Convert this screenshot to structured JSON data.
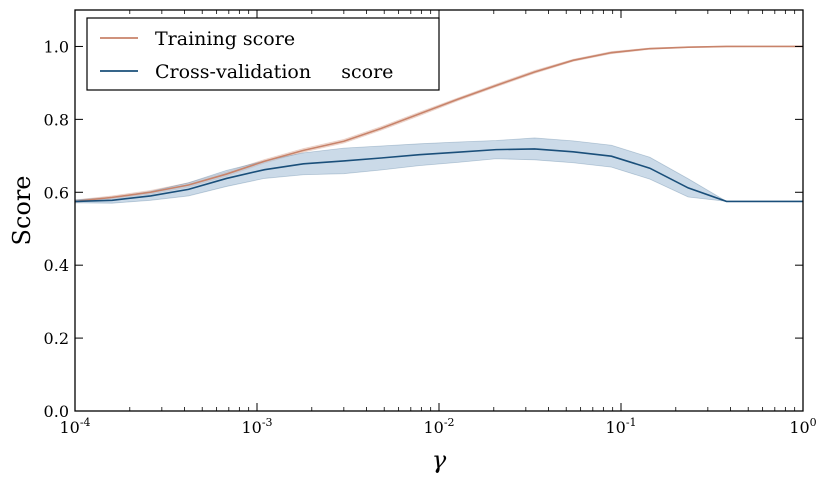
{
  "chart_data": {
    "type": "line",
    "title": "",
    "xlabel": "γ",
    "ylabel": "Score",
    "xscale": "log",
    "xlim": [
      0.0001,
      1
    ],
    "ylim": [
      0.0,
      1.1
    ],
    "x_ticks": [
      {
        "value": 0.0001,
        "base": "10",
        "exp": "-4"
      },
      {
        "value": 0.001,
        "base": "10",
        "exp": "-3"
      },
      {
        "value": 0.01,
        "base": "10",
        "exp": "-2"
      },
      {
        "value": 0.1,
        "base": "10",
        "exp": "-1"
      },
      {
        "value": 1,
        "base": "10",
        "exp": "0"
      }
    ],
    "y_ticks": [
      {
        "value": 0.0,
        "label": "0.0"
      },
      {
        "value": 0.2,
        "label": "0.2"
      },
      {
        "value": 0.4,
        "label": "0.4"
      },
      {
        "value": 0.6,
        "label": "0.6"
      },
      {
        "value": 0.8,
        "label": "0.8"
      },
      {
        "value": 1.0,
        "label": "1.0"
      }
    ],
    "legend_position": "top-left",
    "series": [
      {
        "name": "Training score",
        "color": "#c8836a",
        "band_color": "#e8c4b8",
        "x": [
          0.0001,
          0.00016,
          0.00026,
          0.00042,
          0.00068,
          0.0011,
          0.0018,
          0.003,
          0.0048,
          0.0078,
          0.0127,
          0.0206,
          0.0335,
          0.0546,
          0.0886,
          0.144,
          0.234,
          0.38,
          0.617,
          1.0
        ],
        "values": [
          0.575,
          0.586,
          0.6,
          0.62,
          0.65,
          0.685,
          0.715,
          0.74,
          0.775,
          0.815,
          0.855,
          0.893,
          0.93,
          0.962,
          0.983,
          0.994,
          0.998,
          1.0,
          1.0,
          1.0
        ],
        "std": [
          0.004,
          0.004,
          0.005,
          0.006,
          0.006,
          0.005,
          0.005,
          0.005,
          0.005,
          0.005,
          0.004,
          0.004,
          0.004,
          0.003,
          0.003,
          0.002,
          0.001,
          0.001,
          0.0,
          0.0
        ]
      },
      {
        "name": "Cross-validation     score",
        "color": "#1a4f7a",
        "band_color": "#a9c1d9",
        "x": [
          0.0001,
          0.00016,
          0.00026,
          0.00042,
          0.00068,
          0.0011,
          0.0018,
          0.003,
          0.0048,
          0.0078,
          0.0127,
          0.0206,
          0.0335,
          0.0546,
          0.0886,
          0.144,
          0.234,
          0.38,
          0.617,
          1.0
        ],
        "values": [
          0.575,
          0.578,
          0.59,
          0.608,
          0.638,
          0.662,
          0.678,
          0.686,
          0.694,
          0.703,
          0.71,
          0.717,
          0.719,
          0.711,
          0.699,
          0.666,
          0.612,
          0.575,
          0.575,
          0.575
        ],
        "std": [
          0.004,
          0.008,
          0.012,
          0.018,
          0.022,
          0.024,
          0.03,
          0.035,
          0.033,
          0.03,
          0.028,
          0.025,
          0.03,
          0.03,
          0.03,
          0.03,
          0.025,
          0.0,
          0.0,
          0.0
        ]
      }
    ]
  }
}
